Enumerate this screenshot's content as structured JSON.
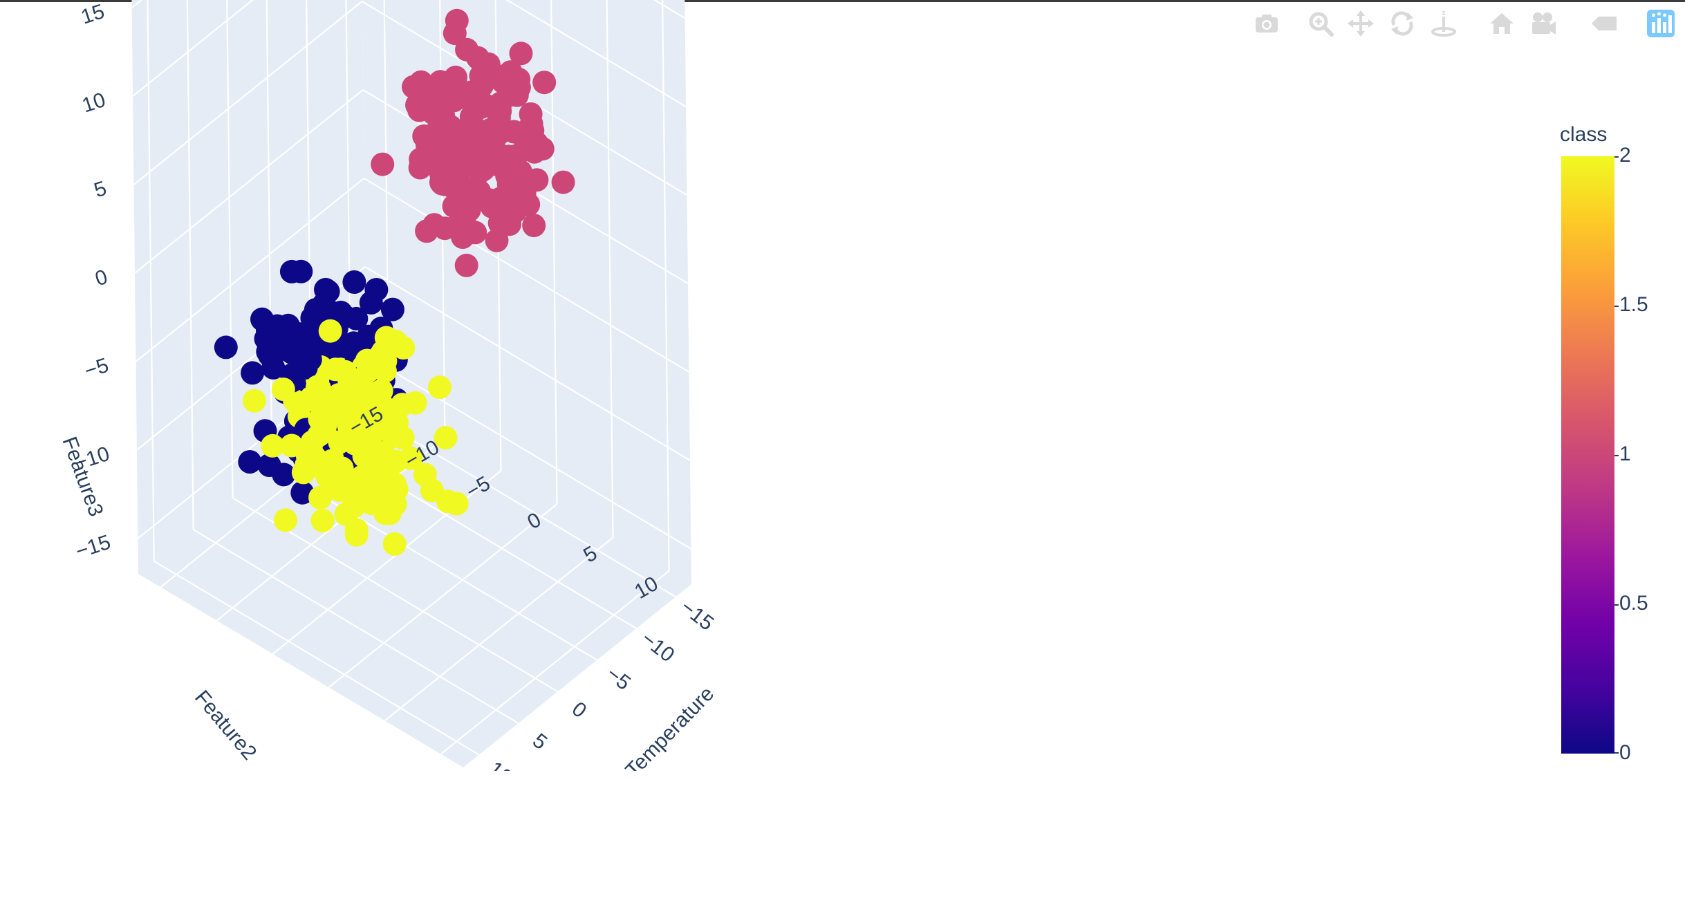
{
  "modebar": [
    {
      "name": "camera-icon",
      "label": "Download plot as a png"
    },
    {
      "name": "zoom-icon",
      "label": "Zoom"
    },
    {
      "name": "pan-icon",
      "label": "Pan"
    },
    {
      "name": "orbit-icon",
      "label": "Orbital rotation"
    },
    {
      "name": "turntable-icon",
      "label": "Turntable rotation"
    },
    {
      "name": "home-icon",
      "label": "Reset camera to default"
    },
    {
      "name": "camera-save-icon",
      "label": "Save camera"
    },
    {
      "name": "hover-icon",
      "label": "Toggle show closest data"
    },
    {
      "name": "plotly-logo-icon",
      "label": "Produced with Plotly"
    }
  ],
  "chart_data": {
    "type": "scatter3d",
    "axes": {
      "x": {
        "label": "Temperature",
        "ticks": [
          -15,
          -10,
          -5,
          0,
          5,
          10
        ],
        "range": [
          -17,
          12
        ]
      },
      "y": {
        "label": "Feature2",
        "ticks": [
          -15,
          -10,
          -5,
          0,
          5,
          10
        ],
        "range": [
          -17,
          12
        ]
      },
      "z": {
        "label": "Feature3",
        "ticks": [
          -15,
          -10,
          -5,
          0,
          5,
          10,
          15
        ],
        "range": [
          -17,
          17
        ]
      }
    },
    "colorbar": {
      "title": "class",
      "ticks": [
        "0",
        "0.5",
        "1",
        "1.5",
        "2"
      ],
      "range": [
        0,
        2
      ],
      "colorscale": "plasma"
    },
    "clusters": [
      {
        "class": 0,
        "color": "#0d0887",
        "center": {
          "x": 2,
          "y": -7,
          "z": -6
        },
        "spread": 2.4,
        "points": 150
      },
      {
        "class": 1,
        "color": "#cc4778",
        "center": {
          "x": -6,
          "y": 1,
          "z": 8
        },
        "spread": 2.4,
        "points": 150
      },
      {
        "class": 2,
        "color": "#f0f921",
        "center": {
          "x": 5,
          "y": -2,
          "z": -6
        },
        "spread": 2.4,
        "points": 150
      }
    ],
    "grid": true,
    "background": "#e5ecf6"
  }
}
